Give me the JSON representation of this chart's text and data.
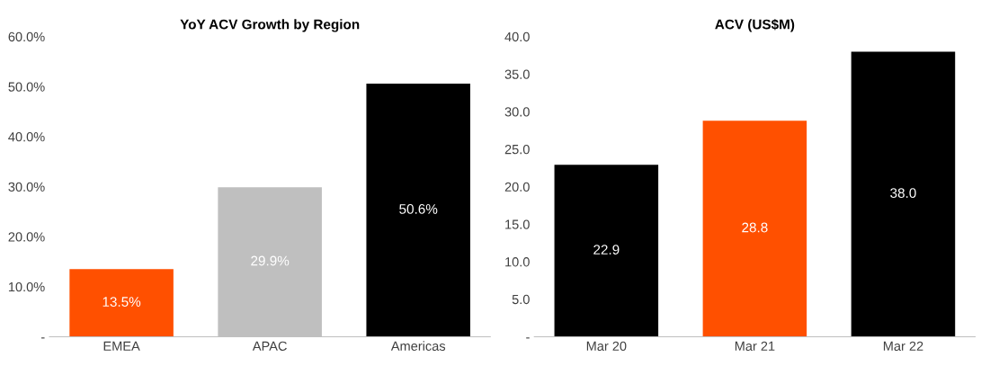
{
  "chart_data": [
    {
      "type": "bar",
      "title": "YoY ACV Growth by Region",
      "categories": [
        "EMEA",
        "APAC",
        "Americas"
      ],
      "values": [
        13.5,
        29.9,
        50.6
      ],
      "colors": [
        "#ff5000",
        "#bfbfbf",
        "#000000"
      ],
      "value_labels": [
        "13.5%",
        "29.9%",
        "50.6%"
      ],
      "ylim": [
        0,
        60
      ],
      "yticks": [
        {
          "value": 0,
          "label": "-"
        },
        {
          "value": 10,
          "label": "10.0%"
        },
        {
          "value": 20,
          "label": "20.0%"
        },
        {
          "value": 30,
          "label": "30.0%"
        },
        {
          "value": 40,
          "label": "40.0%"
        },
        {
          "value": 50,
          "label": "50.0%"
        },
        {
          "value": 60,
          "label": "60.0%"
        }
      ],
      "grid": false,
      "legend": false
    },
    {
      "type": "bar",
      "title": "ACV (US$M)",
      "categories": [
        "Mar 20",
        "Mar 21",
        "Mar 22"
      ],
      "values": [
        22.9,
        28.8,
        38.0
      ],
      "colors": [
        "#000000",
        "#ff5000",
        "#000000"
      ],
      "value_labels": [
        "22.9",
        "28.8",
        "38.0"
      ],
      "ylim": [
        0,
        40
      ],
      "yticks": [
        {
          "value": 0,
          "label": "-"
        },
        {
          "value": 5,
          "label": "5.0"
        },
        {
          "value": 10,
          "label": "10.0"
        },
        {
          "value": 15,
          "label": "15.0"
        },
        {
          "value": 20,
          "label": "20.0"
        },
        {
          "value": 25,
          "label": "25.0"
        },
        {
          "value": 30,
          "label": "30.0"
        },
        {
          "value": 35,
          "label": "35.0"
        },
        {
          "value": 40,
          "label": "40.0"
        }
      ],
      "grid": false,
      "legend": false
    }
  ]
}
